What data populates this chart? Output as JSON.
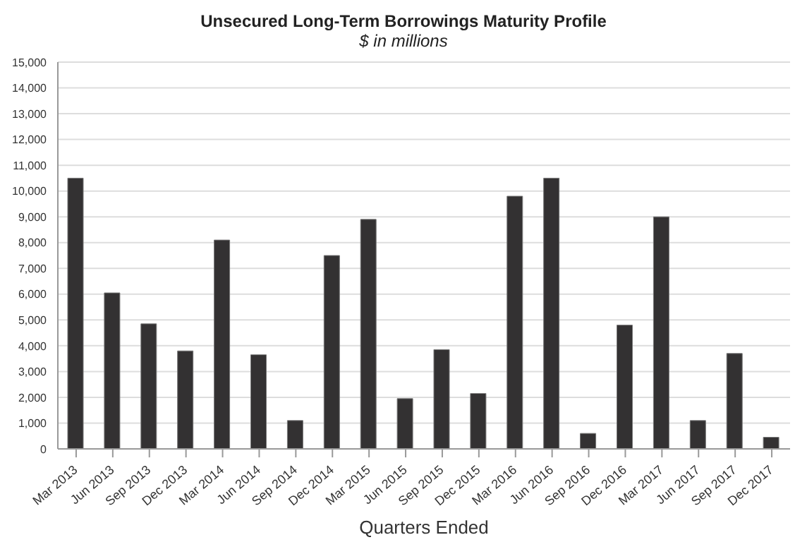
{
  "chart_data": {
    "type": "bar",
    "title": "Unsecured Long-Term Borrowings Maturity Profile",
    "subtitle": "$ in millions",
    "xlabel": "Quarters Ended",
    "categories": [
      "Mar 2013",
      "Jun 2013",
      "Sep 2013",
      "Dec 2013",
      "Mar 2014",
      "Jun 2014",
      "Sep 2014",
      "Dec 2014",
      "Mar 2015",
      "Jun 2015",
      "Sep 2015",
      "Dec 2015",
      "Mar 2016",
      "Jun 2016",
      "Sep 2016",
      "Dec 2016",
      "Mar 2017",
      "Jun 2017",
      "Sep 2017",
      "Dec 2017"
    ],
    "values": [
      10500,
      6050,
      4850,
      3800,
      8100,
      3650,
      1100,
      7500,
      8900,
      1950,
      3850,
      2150,
      9800,
      10500,
      600,
      4800,
      9000,
      1100,
      3700,
      450
    ],
    "color": "#333132",
    "ylim": [
      0,
      15000
    ],
    "yticks": [
      {
        "value": 0,
        "label": "0"
      },
      {
        "value": 1000,
        "label": "1,000"
      },
      {
        "value": 2000,
        "label": "2,000"
      },
      {
        "value": 3000,
        "label": "3,000"
      },
      {
        "value": 4000,
        "label": "4,000"
      },
      {
        "value": 5000,
        "label": "5,000"
      },
      {
        "value": 6000,
        "label": "6,000"
      },
      {
        "value": 7000,
        "label": "7,000"
      },
      {
        "value": 8000,
        "label": "8,000"
      },
      {
        "value": 9000,
        "label": "9,000"
      },
      {
        "value": 10000,
        "label": "10,000"
      },
      {
        "value": 11000,
        "label": "11,000"
      },
      {
        "value": 12000,
        "label": "12,000"
      },
      {
        "value": 13000,
        "label": "13,000"
      },
      {
        "value": 14000,
        "label": "14,000"
      },
      {
        "value": 15000,
        "label": "15,000"
      }
    ],
    "grid": "y",
    "legend": false
  }
}
